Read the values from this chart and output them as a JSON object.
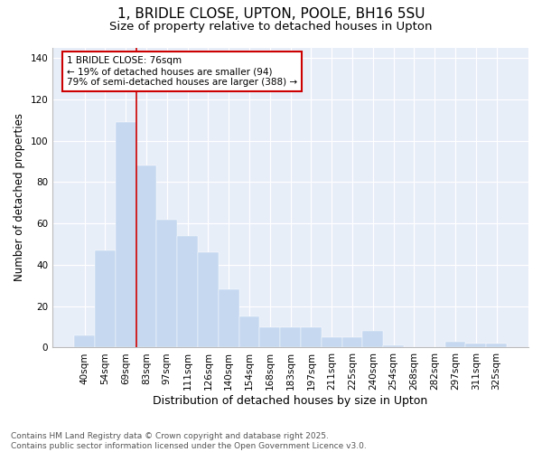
{
  "title": "1, BRIDLE CLOSE, UPTON, POOLE, BH16 5SU",
  "subtitle": "Size of property relative to detached houses in Upton",
  "xlabel": "Distribution of detached houses by size in Upton",
  "ylabel": "Number of detached properties",
  "categories": [
    "40sqm",
    "54sqm",
    "69sqm",
    "83sqm",
    "97sqm",
    "111sqm",
    "126sqm",
    "140sqm",
    "154sqm",
    "168sqm",
    "183sqm",
    "197sqm",
    "211sqm",
    "225sqm",
    "240sqm",
    "254sqm",
    "268sqm",
    "282sqm",
    "297sqm",
    "311sqm",
    "325sqm"
  ],
  "values": [
    6,
    47,
    109,
    88,
    62,
    54,
    46,
    28,
    15,
    10,
    10,
    10,
    5,
    5,
    8,
    1,
    0,
    0,
    3,
    2,
    2
  ],
  "bar_color": "#c5d8f0",
  "bar_edgecolor": "#c5d8f0",
  "vline_x": 2.5,
  "vline_color": "#cc0000",
  "annotation_text": "1 BRIDLE CLOSE: 76sqm\n← 19% of detached houses are smaller (94)\n79% of semi-detached houses are larger (388) →",
  "annotation_box_edgecolor": "#cc0000",
  "ylim": [
    0,
    145
  ],
  "yticks": [
    0,
    20,
    40,
    60,
    80,
    100,
    120,
    140
  ],
  "background_color": "#ffffff",
  "plot_background": "#e8eef8",
  "footer_line1": "Contains HM Land Registry data © Crown copyright and database right 2025.",
  "footer_line2": "Contains public sector information licensed under the Open Government Licence v3.0.",
  "title_fontsize": 11,
  "subtitle_fontsize": 9.5,
  "xlabel_fontsize": 9,
  "ylabel_fontsize": 8.5,
  "tick_fontsize": 7.5,
  "footer_fontsize": 6.5,
  "annotation_fontsize": 7.5,
  "grid_color": "#ffffff",
  "axis_color": "#bbbbbb",
  "spine_color": "#bbbbbb"
}
